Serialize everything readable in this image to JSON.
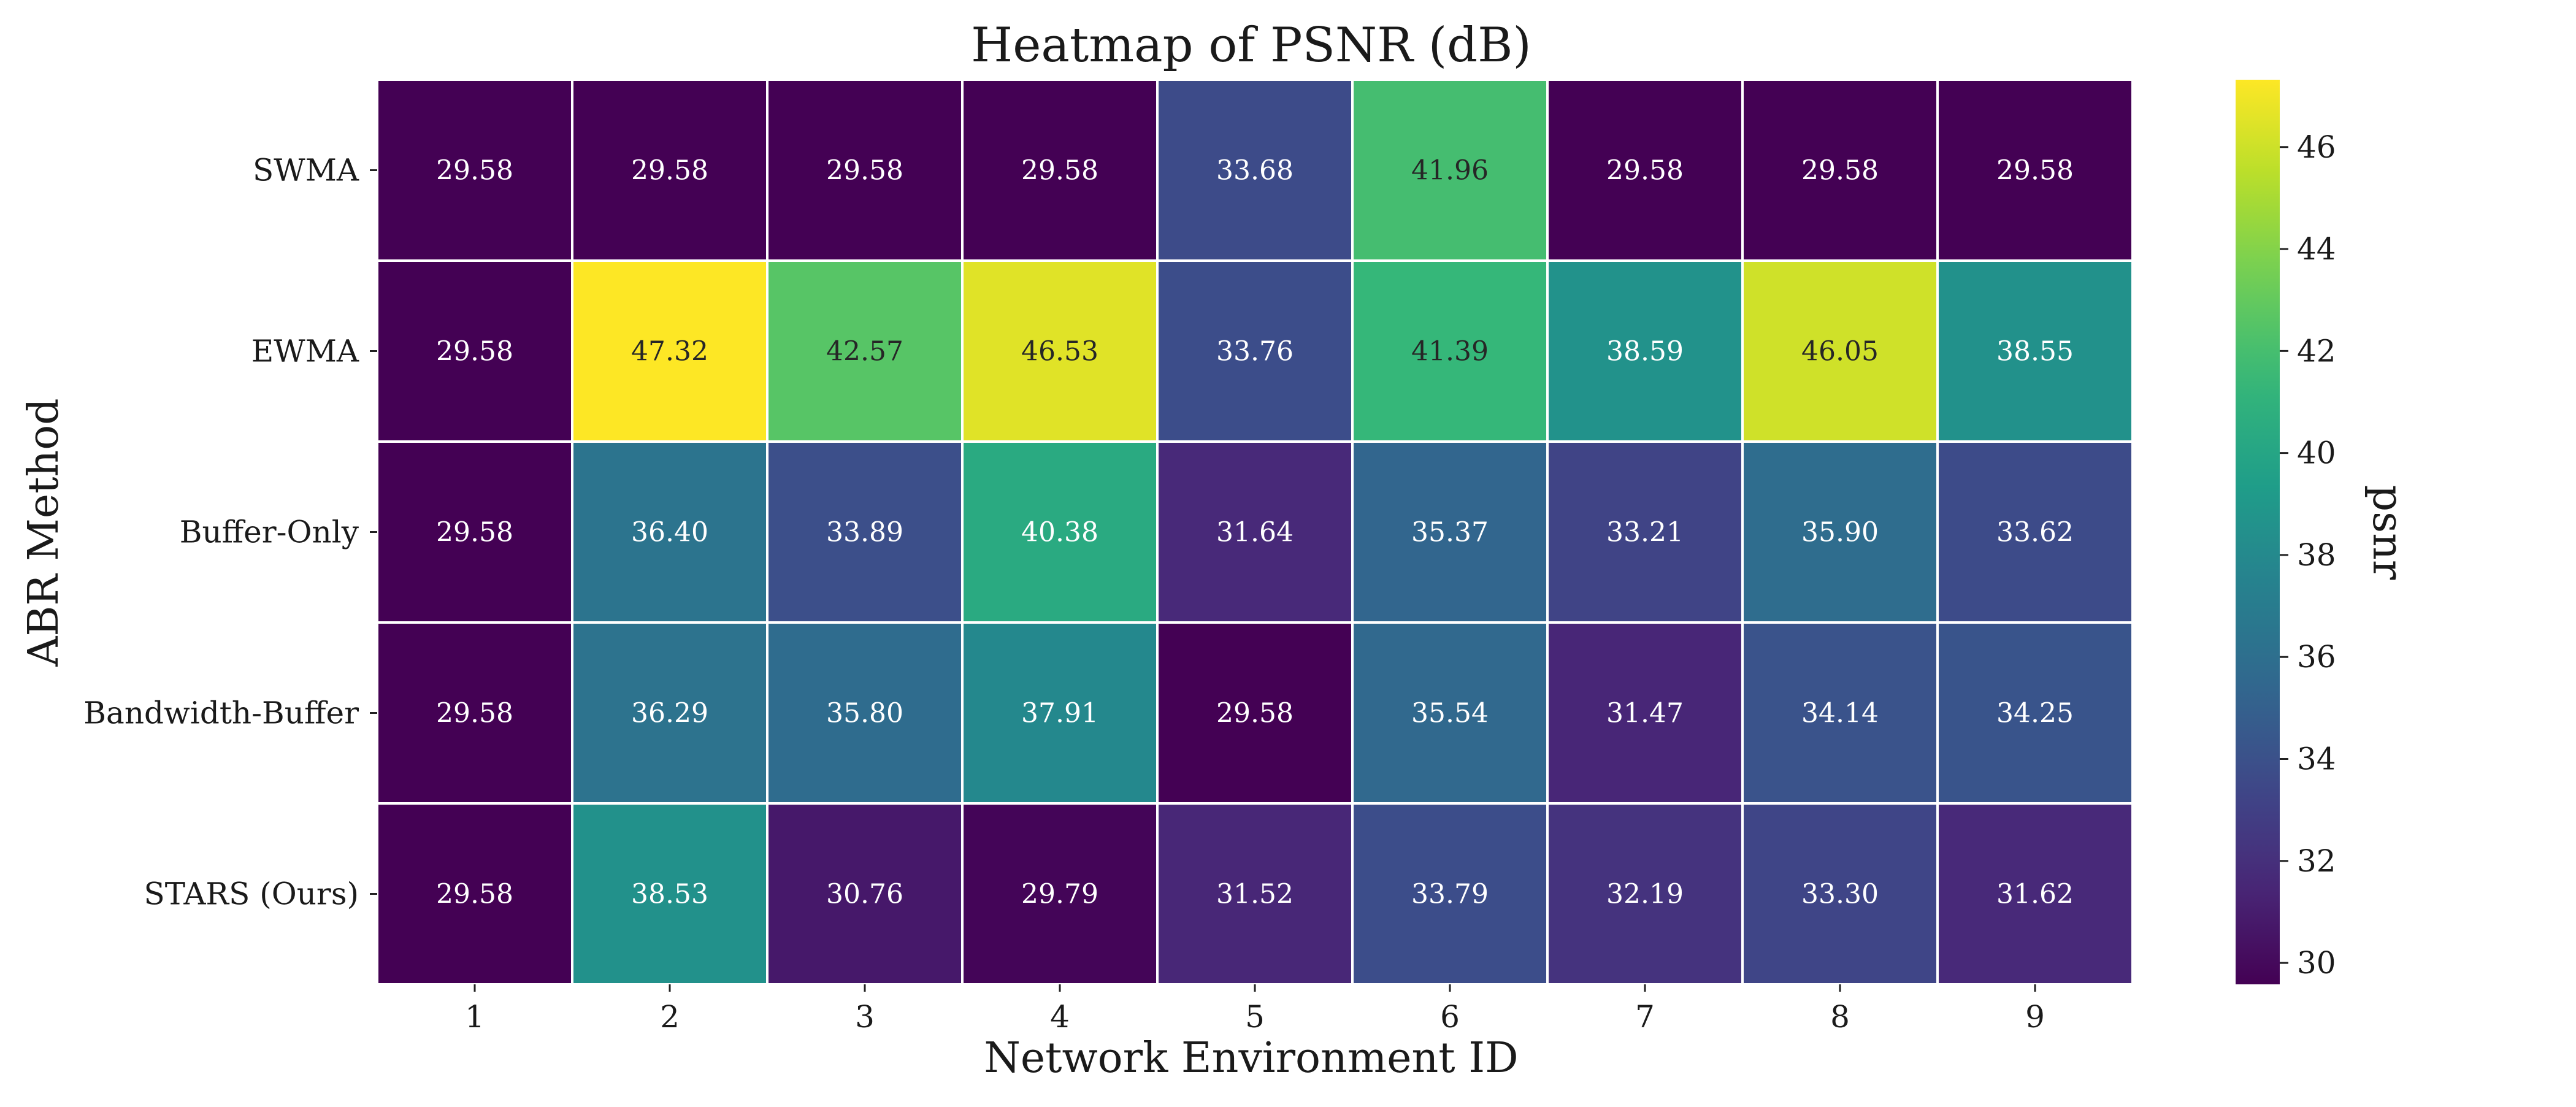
{
  "chart_data": {
    "type": "heatmap",
    "title": "Heatmap of PSNR (dB)",
    "xlabel": "Network Environment ID",
    "ylabel": "ABR Method",
    "x_categories": [
      "1",
      "2",
      "3",
      "4",
      "5",
      "6",
      "7",
      "8",
      "9"
    ],
    "y_categories": [
      "SWMA",
      "EWMA",
      "Buffer-Only",
      "Bandwidth-Buffer",
      "STARS (Ours)"
    ],
    "values": [
      [
        29.58,
        29.58,
        29.58,
        29.58,
        33.68,
        41.96,
        29.58,
        29.58,
        29.58
      ],
      [
        29.58,
        47.32,
        42.57,
        46.53,
        33.76,
        41.39,
        38.59,
        46.05,
        38.55
      ],
      [
        29.58,
        36.4,
        33.89,
        40.38,
        31.64,
        35.37,
        33.21,
        35.9,
        33.62
      ],
      [
        29.58,
        36.29,
        35.8,
        37.91,
        29.58,
        35.54,
        31.47,
        34.14,
        34.25
      ],
      [
        29.58,
        38.53,
        30.76,
        29.79,
        31.52,
        33.79,
        32.19,
        33.3,
        31.62
      ]
    ],
    "value_format": "0.00",
    "colormap": "viridis",
    "vmin": 29.58,
    "vmax": 47.32,
    "colorbar": {
      "label": "psnr",
      "ticks": [
        30,
        32,
        34,
        36,
        38,
        40,
        42,
        44,
        46
      ]
    },
    "grid": false,
    "cell_border_color": "#ffffff"
  }
}
